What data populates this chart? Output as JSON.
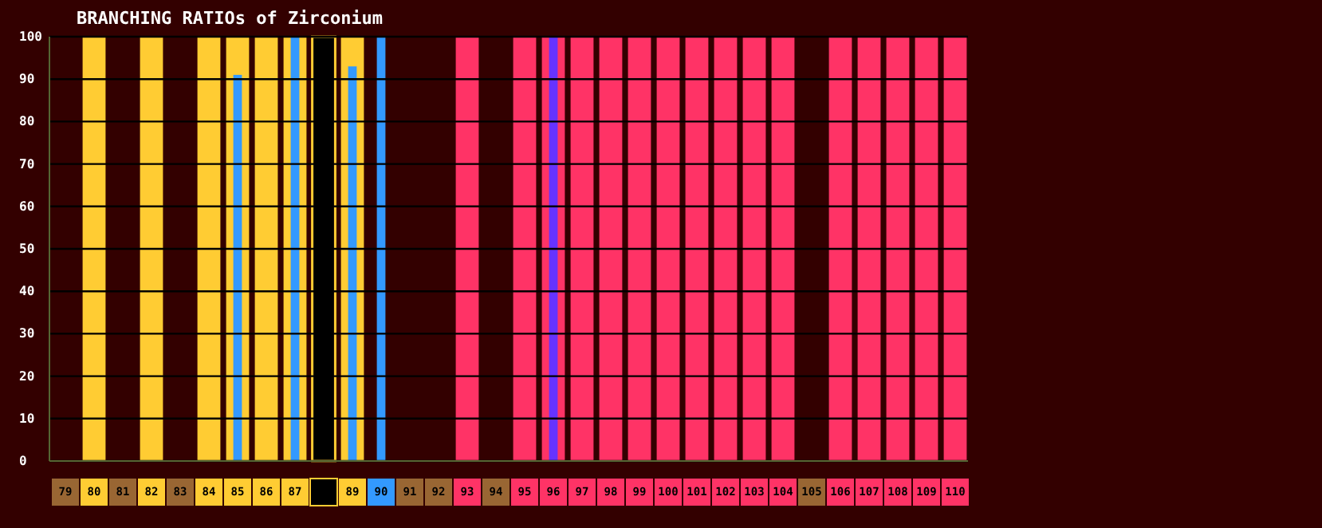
{
  "chart_data": {
    "type": "bar",
    "title": "BRANCHING RATIOs of Zirconium",
    "categories": [
      "79",
      "80",
      "81",
      "82",
      "83",
      "84",
      "85",
      "86",
      "87",
      null,
      "89",
      "90",
      "91",
      "92",
      "93",
      "94",
      "95",
      "96",
      "97",
      "98",
      "99",
      "100",
      "101",
      "102",
      "103",
      "104",
      "105",
      "106",
      "107",
      "108",
      "109",
      "110"
    ],
    "series": [
      {
        "color": "#000000",
        "values": [
          null,
          null,
          null,
          null,
          null,
          null,
          null,
          null,
          null,
          100,
          null,
          null,
          null,
          null,
          null,
          null,
          null,
          null,
          null,
          null,
          null,
          null,
          null,
          null,
          null,
          null,
          null,
          null,
          null,
          null,
          null,
          null
        ]
      },
      {
        "color": "#ffcc33",
        "values": [
          null,
          100,
          null,
          100,
          null,
          100,
          100,
          100,
          100,
          null,
          100,
          null,
          null,
          null,
          null,
          null,
          null,
          null,
          null,
          null,
          null,
          null,
          null,
          null,
          null,
          null,
          null,
          null,
          null,
          null,
          null,
          null
        ]
      },
      {
        "color": "#ff3366",
        "values": [
          null,
          null,
          null,
          null,
          null,
          null,
          null,
          null,
          null,
          null,
          null,
          null,
          null,
          null,
          100,
          null,
          100,
          100,
          100,
          100,
          100,
          100,
          100,
          100,
          100,
          100,
          null,
          100,
          100,
          100,
          100,
          100
        ]
      },
      {
        "color": "#3399ff",
        "values": [
          null,
          null,
          null,
          null,
          null,
          null,
          91,
          null,
          100,
          null,
          93,
          100,
          null,
          null,
          null,
          null,
          null,
          null,
          null,
          null,
          null,
          null,
          null,
          null,
          null,
          null,
          null,
          null,
          null,
          null,
          null,
          null
        ]
      },
      {
        "color": "#6633ff",
        "values": [
          null,
          null,
          null,
          null,
          null,
          null,
          null,
          null,
          null,
          null,
          null,
          null,
          null,
          null,
          null,
          null,
          null,
          100,
          null,
          null,
          null,
          null,
          null,
          null,
          null,
          null,
          null,
          null,
          null,
          null,
          null,
          null
        ]
      }
    ],
    "ylim": [
      0,
      100
    ],
    "yticks": [
      0,
      10,
      20,
      30,
      40,
      50,
      60,
      70,
      80,
      90,
      100
    ],
    "grid": "y"
  }
}
